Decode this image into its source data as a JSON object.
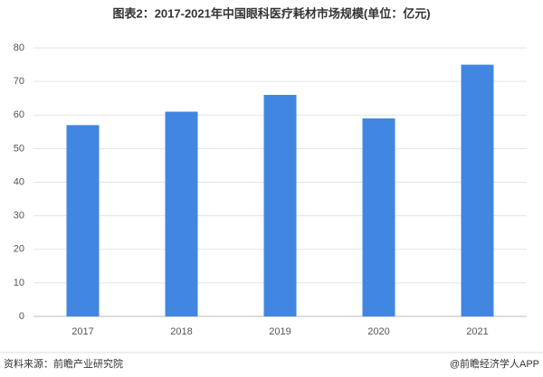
{
  "chart_data": {
    "type": "bar",
    "title": "图表2：2017-2021年中国眼科医疗耗材市场规模(单位：亿元)",
    "categories": [
      "2017",
      "2018",
      "2019",
      "2020",
      "2021"
    ],
    "values": [
      57,
      61,
      66,
      59,
      75
    ],
    "color": "#4186e0",
    "ylim": [
      0,
      80
    ],
    "yticks": [
      0,
      10,
      20,
      30,
      40,
      50,
      60,
      70,
      80
    ],
    "grid": true
  },
  "footer": {
    "source": "资料来源：前瞻产业研究院",
    "credit": "@前瞻经济学人APP"
  }
}
